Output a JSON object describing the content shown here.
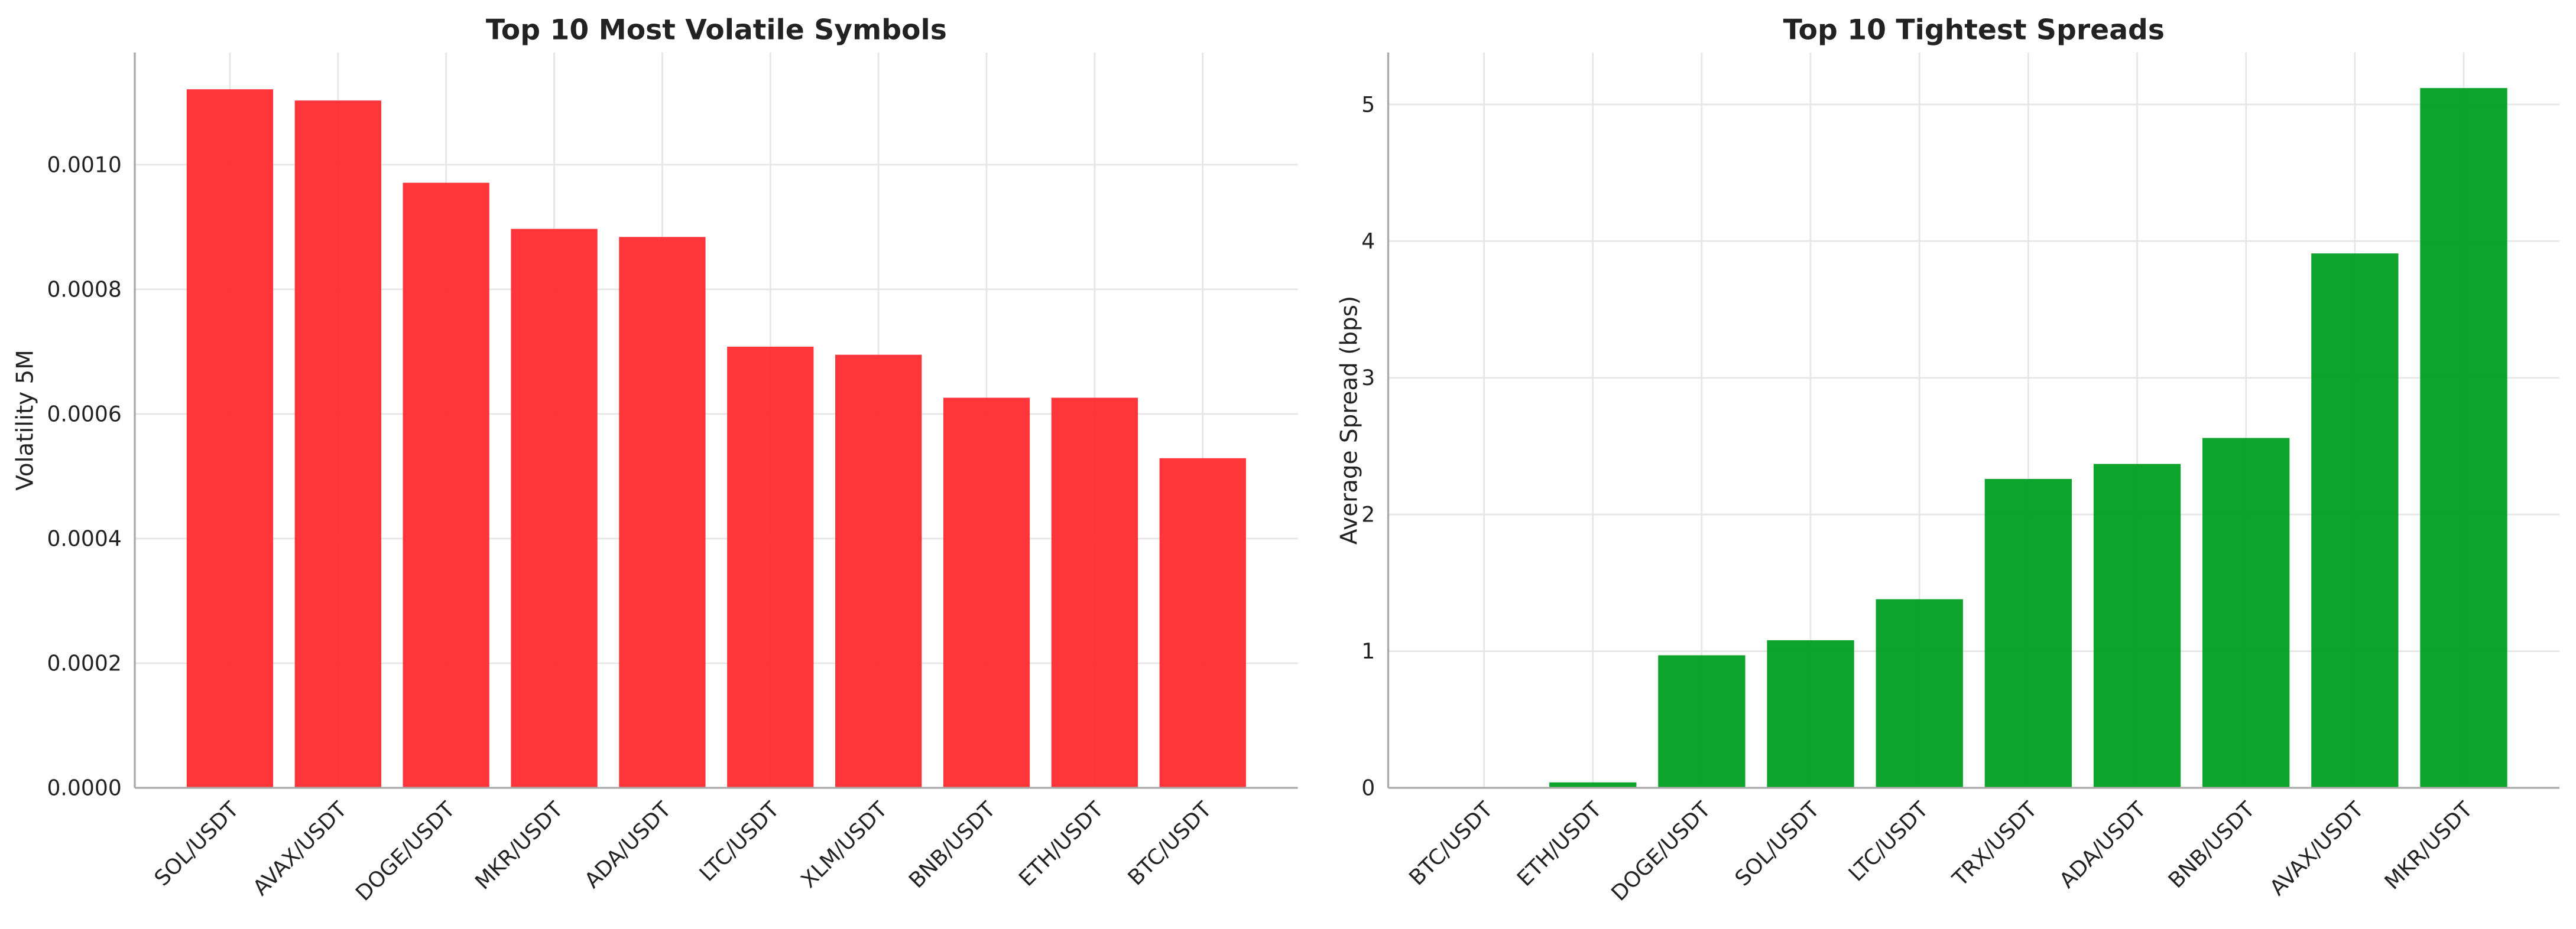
{
  "chart_data": [
    {
      "type": "bar",
      "title": "Top 10 Most Volatile Symbols",
      "y_label": "Volatility 5M",
      "categories": [
        "SOL/USDT",
        "AVAX/USDT",
        "DOGE/USDT",
        "MKR/USDT",
        "ADA/USDT",
        "LTC/USDT",
        "XLM/USDT",
        "BNB/USDT",
        "ETH/USDT",
        "BTC/USDT"
      ],
      "values": [
        0.001121,
        0.001103,
        0.000971,
        0.000897,
        0.000884,
        0.000708,
        0.000695,
        0.000626,
        0.000626,
        0.000529
      ],
      "color": "#fe2b2f",
      "ylim": [
        0,
        0.00118
      ],
      "yticks": [
        {
          "value": 0,
          "label": "0.0000"
        },
        {
          "value": 0.0002,
          "label": "0.0002"
        },
        {
          "value": 0.0004,
          "label": "0.0004"
        },
        {
          "value": 0.0006,
          "label": "0.0006"
        },
        {
          "value": 0.0008,
          "label": "0.0008"
        },
        {
          "value": 0.001,
          "label": "0.0010"
        }
      ],
      "grid": true
    },
    {
      "type": "bar",
      "title": "Top 10 Tightest Spreads",
      "y_label": "Average Spread (bps)",
      "categories": [
        "BTC/USDT",
        "ETH/USDT",
        "DOGE/USDT",
        "SOL/USDT",
        "LTC/USDT",
        "TRX/USDT",
        "ADA/USDT",
        "BNB/USDT",
        "AVAX/USDT",
        "MKR/USDT"
      ],
      "values": [
        0.0,
        0.04,
        0.97,
        1.08,
        1.38,
        2.26,
        2.37,
        2.56,
        3.91,
        5.12
      ],
      "color": "#009e22",
      "ylim": [
        0,
        5.38
      ],
      "yticks": [
        0,
        1,
        2,
        3,
        4,
        5
      ],
      "grid": true
    }
  ]
}
